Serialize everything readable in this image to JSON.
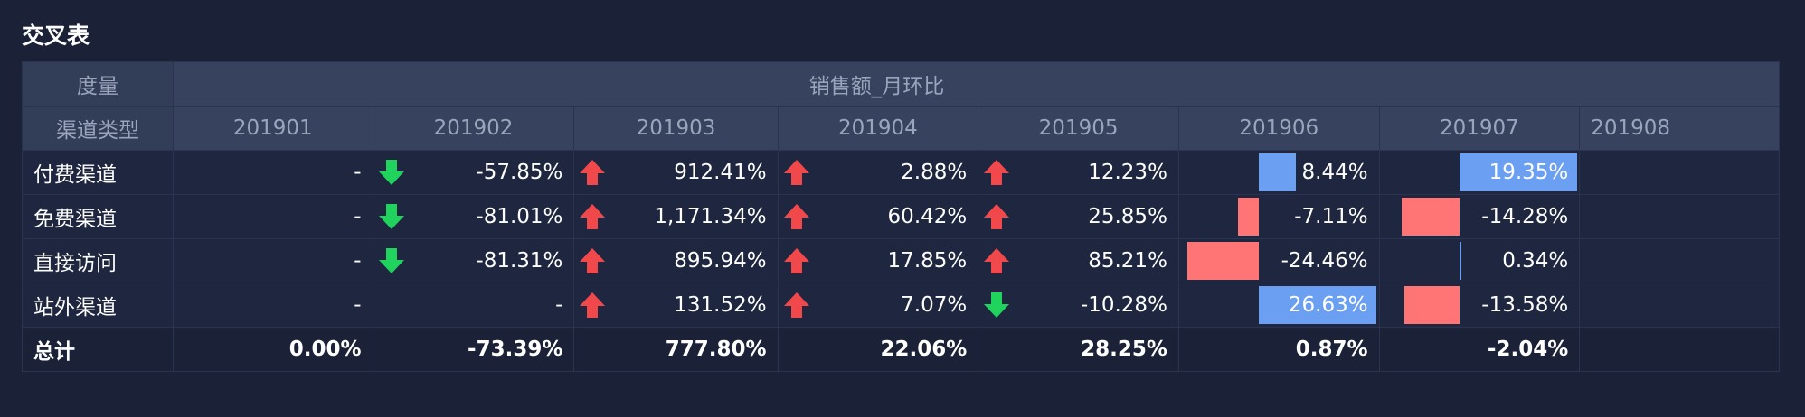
{
  "title": "交叉表",
  "header": {
    "measure_label": "度量",
    "measure_name": "销售额_月环比",
    "dim_label": "渠道类型",
    "months": [
      "201901",
      "201902",
      "201903",
      "201904",
      "201905",
      "201906",
      "201907",
      "201908"
    ]
  },
  "rows": [
    {
      "label": "付费渠道",
      "cells": [
        {
          "text": "-",
          "type": "none"
        },
        {
          "text": "-57.85%",
          "type": "down"
        },
        {
          "text": "912.41%",
          "type": "up"
        },
        {
          "text": "2.88%",
          "type": "up"
        },
        {
          "text": "12.23%",
          "type": "up"
        },
        {
          "text": "8.44%",
          "type": "bar",
          "value": 8.44
        },
        {
          "text": "19.35%",
          "type": "bar",
          "value": 19.35
        },
        {
          "text": "",
          "type": "none"
        }
      ]
    },
    {
      "label": "免费渠道",
      "cells": [
        {
          "text": "-",
          "type": "none"
        },
        {
          "text": "-81.01%",
          "type": "down"
        },
        {
          "text": "1,171.34%",
          "type": "up"
        },
        {
          "text": "60.42%",
          "type": "up"
        },
        {
          "text": "25.85%",
          "type": "up"
        },
        {
          "text": "-7.11%",
          "type": "bar",
          "value": -7.11
        },
        {
          "text": "-14.28%",
          "type": "bar",
          "value": -14.28
        },
        {
          "text": "",
          "type": "none"
        }
      ]
    },
    {
      "label": "直接访问",
      "cells": [
        {
          "text": "-",
          "type": "none"
        },
        {
          "text": "-81.31%",
          "type": "down"
        },
        {
          "text": "895.94%",
          "type": "up"
        },
        {
          "text": "17.85%",
          "type": "up"
        },
        {
          "text": "85.21%",
          "type": "up"
        },
        {
          "text": "-24.46%",
          "type": "bar",
          "value": -24.46
        },
        {
          "text": "0.34%",
          "type": "bar",
          "value": 0.34
        },
        {
          "text": "",
          "type": "none"
        }
      ]
    },
    {
      "label": "站外渠道",
      "cells": [
        {
          "text": "-",
          "type": "none"
        },
        {
          "text": "-",
          "type": "none"
        },
        {
          "text": "131.52%",
          "type": "up"
        },
        {
          "text": "7.07%",
          "type": "up"
        },
        {
          "text": "-10.28%",
          "type": "down"
        },
        {
          "text": "26.63%",
          "type": "bar",
          "value": 26.63
        },
        {
          "text": "-13.58%",
          "type": "bar",
          "value": -13.58
        },
        {
          "text": "",
          "type": "none"
        }
      ]
    }
  ],
  "total": {
    "label": "总计",
    "cells": [
      "0.00%",
      "-73.39%",
      "777.80%",
      "22.06%",
      "28.25%",
      "0.87%",
      "-2.04%",
      ""
    ]
  },
  "colors": {
    "up": "#f1494b",
    "down": "#1fd35c",
    "bar_positive": "#6b9ff2",
    "bar_negative": "#ff7575"
  }
}
